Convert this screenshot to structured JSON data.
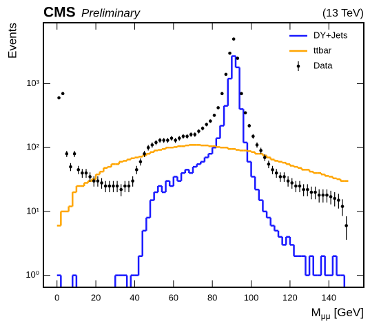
{
  "chart_data": {
    "type": "histogram",
    "title": "CMS",
    "subtitle": "Preliminary",
    "energy_label": "(13 TeV)",
    "x_label": "M",
    "x_label_sub": "μμ",
    "x_label_unit": "[GeV]",
    "y_label": "Events",
    "log_y": true,
    "legend": "upper right",
    "xlim": [
      -7,
      158
    ],
    "xticks": [
      0,
      20,
      40,
      60,
      80,
      100,
      120,
      140
    ],
    "ylim": [
      0.65,
      9000
    ],
    "yticks": [
      {
        "value": 1,
        "label": "10⁰"
      },
      {
        "value": 10,
        "label": "10¹"
      },
      {
        "value": 100,
        "label": "10²"
      },
      {
        "value": 1000,
        "label": "10³"
      }
    ],
    "bins": [
      0,
      2,
      4,
      6,
      8,
      10,
      12,
      14,
      16,
      18,
      20,
      22,
      24,
      26,
      28,
      30,
      32,
      34,
      36,
      38,
      40,
      42,
      44,
      46,
      48,
      50,
      52,
      54,
      56,
      58,
      60,
      62,
      64,
      66,
      68,
      70,
      72,
      74,
      76,
      78,
      80,
      82,
      84,
      86,
      88,
      90,
      92,
      94,
      96,
      98,
      100,
      102,
      104,
      106,
      108,
      110,
      112,
      114,
      116,
      118,
      120,
      122,
      124,
      126,
      128,
      130,
      132,
      134,
      136,
      138,
      140,
      142,
      144,
      146,
      148,
      150
    ],
    "series": [
      {
        "name": "DY+Jets",
        "color": "#1a1aff",
        "values": [
          1,
          0,
          0,
          0,
          1,
          0,
          0,
          0,
          0,
          0,
          0,
          0,
          0,
          0,
          0,
          1,
          1,
          1,
          0,
          1,
          1,
          2,
          5,
          8,
          15,
          20,
          25,
          20,
          30,
          25,
          35,
          30,
          40,
          45,
          40,
          50,
          55,
          60,
          70,
          80,
          100,
          140,
          220,
          450,
          1200,
          2700,
          1800,
          400,
          120,
          60,
          35,
          22,
          15,
          10,
          8,
          6,
          5,
          4,
          3,
          4,
          3,
          2,
          2,
          2,
          1,
          2,
          1,
          1,
          2,
          1,
          1,
          2,
          1,
          1,
          0
        ]
      },
      {
        "name": "ttbar",
        "color": "#ffa500",
        "values": [
          6,
          10,
          10,
          12,
          20,
          25,
          25,
          28,
          30,
          32,
          38,
          42,
          48,
          50,
          55,
          55,
          60,
          62,
          65,
          68,
          70,
          72,
          75,
          80,
          85,
          90,
          92,
          95,
          100,
          100,
          102,
          105,
          105,
          108,
          110,
          110,
          110,
          108,
          108,
          105,
          105,
          102,
          100,
          100,
          95,
          95,
          92,
          90,
          90,
          88,
          85,
          80,
          80,
          75,
          70,
          65,
          62,
          60,
          58,
          55,
          52,
          50,
          48,
          45,
          45,
          42,
          40,
          40,
          38,
          36,
          35,
          33,
          32,
          30,
          30
        ]
      }
    ],
    "data": {
      "name": "Data",
      "color": "#000000",
      "values": [
        600,
        700,
        80,
        50,
        80,
        45,
        40,
        40,
        35,
        30,
        30,
        28,
        25,
        25,
        25,
        25,
        22,
        25,
        25,
        30,
        45,
        60,
        80,
        100,
        110,
        120,
        130,
        130,
        130,
        140,
        130,
        140,
        150,
        150,
        160,
        160,
        180,
        200,
        230,
        260,
        320,
        420,
        700,
        1400,
        3000,
        5000,
        2500,
        700,
        350,
        220,
        150,
        110,
        90,
        70,
        55,
        45,
        40,
        35,
        35,
        30,
        28,
        25,
        25,
        22,
        22,
        20,
        20,
        18,
        18,
        18,
        17,
        16,
        15,
        12,
        6
      ],
      "errors": [
        24.5,
        26.5,
        8.9,
        7.1,
        8.9,
        6.7,
        6.3,
        6.3,
        5.9,
        5.5,
        5.5,
        5.3,
        5,
        5,
        5,
        5,
        4.7,
        5,
        5,
        5.5,
        6.7,
        7.7,
        8.9,
        10,
        10.5,
        11,
        11.4,
        11.4,
        11.4,
        11.8,
        11.4,
        11.8,
        12.2,
        12.2,
        12.6,
        12.6,
        13.4,
        14.1,
        15.2,
        16.1,
        17.9,
        20.5,
        26.5,
        37.4,
        54.8,
        70.7,
        50,
        26.5,
        18.7,
        14.8,
        12.2,
        10.5,
        9.5,
        8.4,
        7.4,
        6.7,
        6.3,
        5.9,
        5.9,
        5.5,
        5.3,
        5,
        5,
        4.7,
        4.7,
        4.5,
        4.5,
        4.2,
        4.2,
        4.2,
        4.1,
        4,
        3.9,
        3.5,
        2.4
      ]
    }
  }
}
